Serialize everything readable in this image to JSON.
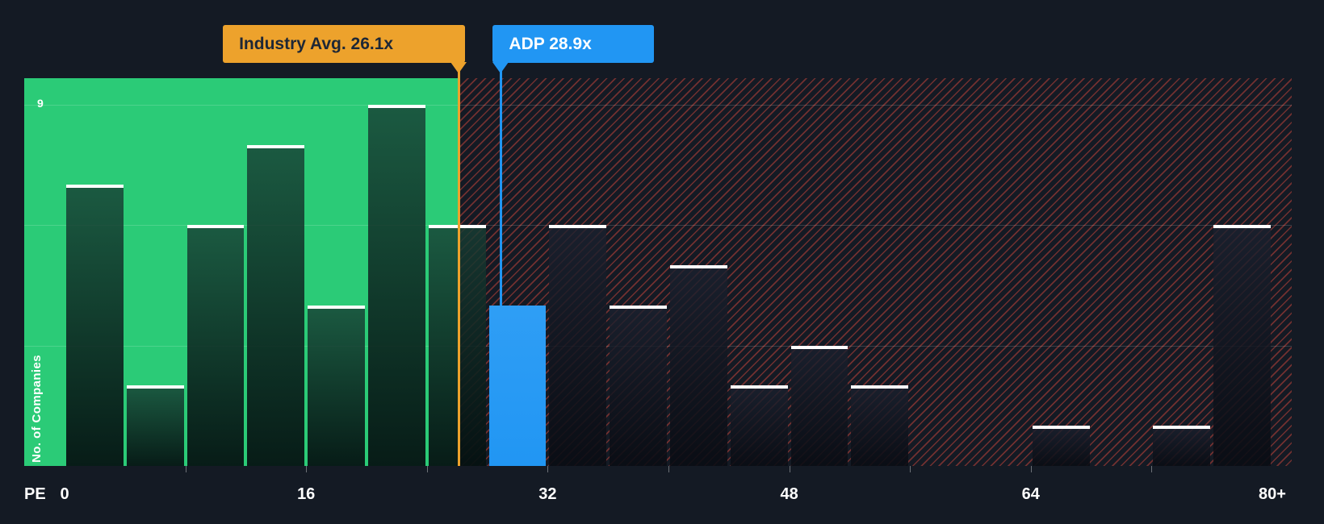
{
  "background_color": "#141A24",
  "chart_data": {
    "type": "bar",
    "xlabel": "PE",
    "ylabel": "No. of Companies",
    "y_max_label": "9",
    "ylim": [
      0,
      9
    ],
    "gridline_values": [
      3,
      6,
      9
    ],
    "grid": true,
    "bin_width": 4,
    "bin_starts": [
      0,
      4,
      8,
      12,
      16,
      20,
      24,
      28,
      32,
      36,
      40,
      44,
      48,
      52,
      56,
      60,
      64,
      68,
      72,
      76
    ],
    "values": [
      7,
      2,
      6,
      8,
      4,
      9,
      6,
      4,
      6,
      4,
      5,
      2,
      3,
      2,
      0,
      0,
      1,
      0,
      1,
      6
    ],
    "x_tick_labels": [
      "0",
      "16",
      "32",
      "48",
      "64",
      "80+"
    ],
    "x_tick_values": [
      0,
      16,
      32,
      48,
      64,
      80
    ],
    "minor_tick_values": [
      8,
      16,
      24,
      32,
      40,
      48,
      56,
      64,
      72
    ],
    "highlight_bin_index": 7,
    "industry_avg": {
      "label": "Industry Avg. 26.1x",
      "value": 26.1,
      "color": "#EDA22C"
    },
    "company": {
      "label": "ADP 28.9x",
      "value": 28.9,
      "color": "#2196F3"
    },
    "zones": {
      "below_avg_fill": "#2BCB77",
      "above_avg_hatch": "#FF5242"
    },
    "bar_cap_color": "#FFFFFF"
  }
}
